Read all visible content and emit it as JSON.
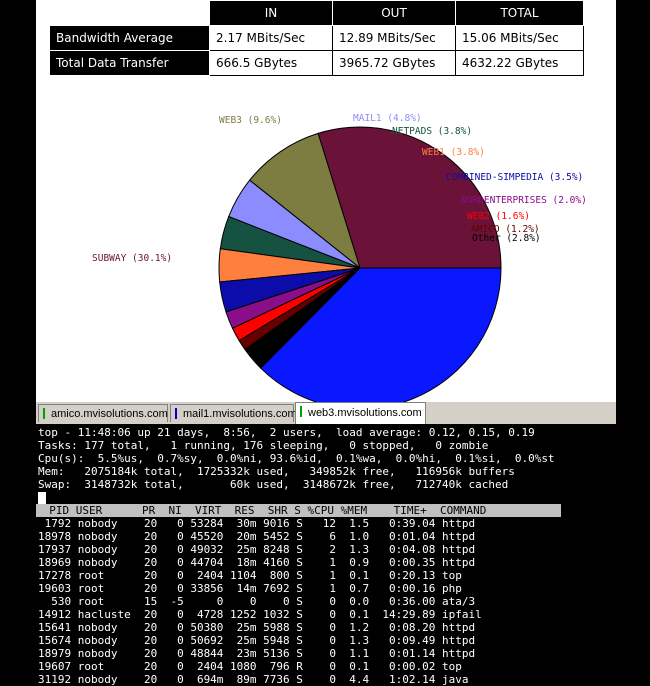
{
  "bandwidth": {
    "headers": [
      "IN",
      "OUT",
      "TOTAL"
    ],
    "rows": [
      {
        "label": "Bandwidth Average",
        "in": "2.17 MBits/Sec",
        "out": "12.89 MBits/Sec",
        "total": "15.06 MBits/Sec"
      },
      {
        "label": "Total Data Transfer",
        "in": "666.5 GBytes",
        "out": "3965.72 GBytes",
        "total": "4632.22 GBytes"
      }
    ]
  },
  "chart_data": {
    "type": "pie",
    "title": "",
    "slices": [
      {
        "label": "SUBWAY (30.1%)",
        "value": 30.1,
        "color": "#6b1238"
      },
      {
        "label": "WEB3 (9.6%)",
        "value": 9.6,
        "color": "#7d7d41"
      },
      {
        "label": "MAIL1 (4.8%)",
        "value": 4.8,
        "color": "#8c8cff"
      },
      {
        "label": "NETPADS (3.8%)",
        "value": 3.8,
        "color": "#155241"
      },
      {
        "label": "WEB1 (3.8%)",
        "value": 3.8,
        "color": "#ff7f3f"
      },
      {
        "label": "COMBINED-SIMPEDIA (3.5%)",
        "value": 3.5,
        "color": "#0c0caa"
      },
      {
        "label": "NORDENTERPRISES (2.0%)",
        "value": 2.0,
        "color": "#8a0d8a"
      },
      {
        "label": "WEB2 (1.6%)",
        "value": 1.6,
        "color": "#ff0000"
      },
      {
        "label": "AMICO (1.2%)",
        "value": 1.2,
        "color": "#660000"
      },
      {
        "label": "Other (2.8%)",
        "value": 2.8,
        "color": "#000000"
      },
      {
        "label": "",
        "value": 37.8,
        "color": "#0a18ff"
      }
    ]
  },
  "tabs": [
    {
      "label": "amico.mvisolutions.com",
      "marker": "#00a000"
    },
    {
      "label": "mail1.mvisolutions.com",
      "marker": "#0000c0"
    },
    {
      "label": "web3.mvisolutions.com",
      "marker": "#00a000"
    }
  ],
  "terminal": {
    "summary": [
      "top - 11:48:06 up 21 days,  8:56,  2 users,  load average: 0.12, 0.15, 0.19",
      "Tasks: 177 total,   1 running, 176 sleeping,   0 stopped,   0 zombie",
      "Cpu(s):  5.5%us,  0.7%sy,  0.0%ni, 93.6%id,  0.1%wa,  0.0%hi,  0.1%si,  0.0%st",
      "Mem:   2075184k total,  1725332k used,   349852k free,   116956k buffers",
      "Swap:  3148732k total,       60k used,  3148672k free,   712740k cached"
    ],
    "header": "  PID USER      PR  NI  VIRT  RES  SHR S %CPU %MEM    TIME+  COMMAND",
    "processes": [
      " 1792 nobody    20   0 53284  30m 9016 S   12  1.5   0:39.04 httpd",
      "18978 nobody    20   0 45520  20m 5452 S    6  1.0   0:01.04 httpd",
      "17937 nobody    20   0 49032  25m 8248 S    2  1.3   0:04.08 httpd",
      "18969 nobody    20   0 44704  18m 4160 S    1  0.9   0:00.35 httpd",
      "17278 root      20   0  2404 1104  800 S    1  0.1   0:20.13 top",
      "19603 root      20   0 33856  14m 7692 S    1  0.7   0:00.16 php",
      "  530 root      15  -5     0    0    0 S    0  0.0   0:36.00 ata/3",
      "14912 hacluste  20   0  4728 1252 1032 S    0  0.1  14:29.89 ipfail",
      "15641 nobody    20   0 50380  25m 5988 S    0  1.2   0:08.20 httpd",
      "15674 nobody    20   0 50692  25m 5948 S    0  1.3   0:09.49 httpd",
      "18979 nobody    20   0 48844  23m 5136 S    0  1.1   0:01.14 httpd",
      "19607 root      20   0  2404 1080  796 R    0  0.1   0:00.02 top",
      "31192 nobody    20   0  694m  89m 7736 S    0  4.4   1:02.14 java"
    ]
  }
}
